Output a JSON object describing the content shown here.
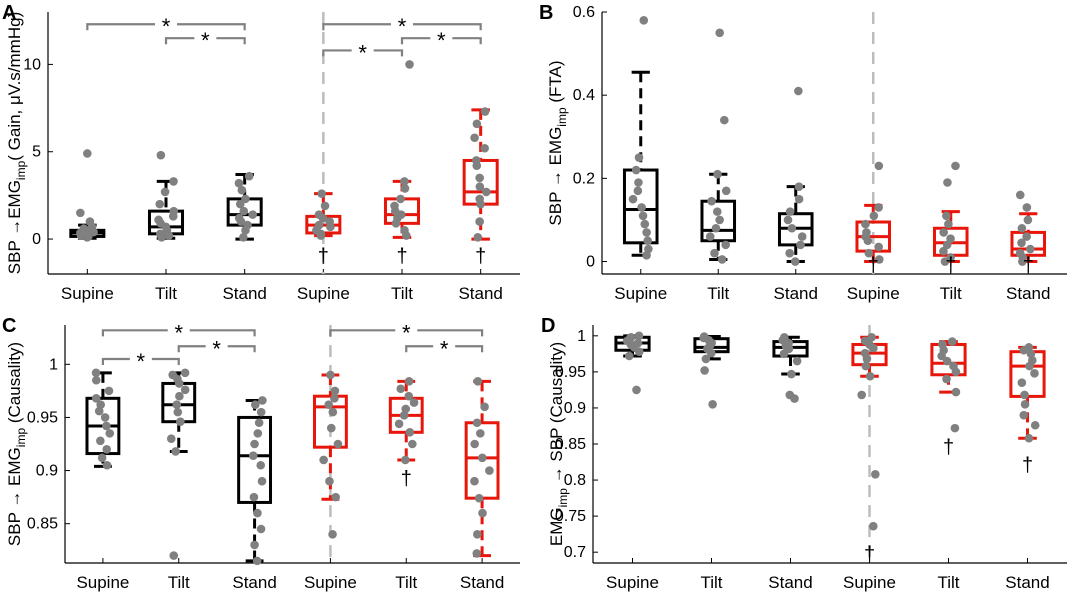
{
  "colors": {
    "black_group": "#000000",
    "red_group": "#e8150b",
    "points": "#808080",
    "bracket": "#808080",
    "divider": "#bdbdbd",
    "axis": "#000000"
  },
  "chart_data": [
    {
      "panel": "A",
      "type": "box",
      "categories": [
        "Supine",
        "Tilt",
        "Stand",
        "Supine",
        "Tilt",
        "Stand"
      ],
      "ylabel_parts": [
        "SBP →EMG",
        "imp",
        "( Gain, μV.s/mmHg)"
      ],
      "ylim": [
        -2,
        13
      ],
      "yticks": [
        0,
        5,
        10
      ],
      "ytick_labels": [
        "0",
        "5",
        "10"
      ],
      "divider_x": 3.5,
      "groups": [
        {
          "color": "black",
          "q1": 0.15,
          "median": 0.35,
          "q3": 0.5,
          "whisker_low": 0.05,
          "whisker_high": 0.8,
          "points": [
            0.1,
            0.15,
            0.2,
            0.25,
            0.3,
            0.3,
            0.35,
            0.4,
            0.45,
            0.5,
            0.6,
            0.7,
            1.0,
            1.5,
            4.9
          ]
        },
        {
          "color": "black",
          "q1": 0.3,
          "median": 0.7,
          "q3": 1.6,
          "whisker_low": 0.05,
          "whisker_high": 3.3,
          "points": [
            0.1,
            0.2,
            0.3,
            0.5,
            0.7,
            0.9,
            1.1,
            1.3,
            1.6,
            2.0,
            2.7,
            3.3,
            4.8
          ]
        },
        {
          "color": "black",
          "q1": 0.8,
          "median": 1.4,
          "q3": 2.3,
          "whisker_low": 0.0,
          "whisker_high": 3.7,
          "points": [
            0.1,
            0.5,
            0.8,
            1.0,
            1.2,
            1.4,
            1.6,
            2.0,
            2.3,
            2.8,
            3.2,
            3.6
          ]
        },
        {
          "color": "red",
          "q1": 0.35,
          "median": 0.8,
          "q3": 1.3,
          "whisker_low": 0.2,
          "whisker_high": 2.6,
          "points": [
            0.2,
            0.3,
            0.5,
            0.7,
            0.8,
            1.0,
            1.2,
            1.4,
            1.9,
            2.6
          ]
        },
        {
          "color": "red",
          "q1": 0.9,
          "median": 1.4,
          "q3": 2.3,
          "whisker_low": 0.1,
          "whisker_high": 3.3,
          "points": [
            0.2,
            0.5,
            0.9,
            1.2,
            1.4,
            1.6,
            1.9,
            2.3,
            2.9,
            3.3,
            10.0
          ]
        },
        {
          "color": "red",
          "q1": 2.0,
          "median": 2.7,
          "q3": 4.5,
          "whisker_low": 0.0,
          "whisker_high": 7.4,
          "points": [
            0.1,
            1.0,
            2.0,
            2.3,
            2.7,
            3.0,
            3.5,
            4.2,
            4.5,
            5.2,
            5.8,
            6.6,
            7.3
          ]
        }
      ],
      "significance": [
        {
          "from": 1,
          "to": 3,
          "level": 12.3,
          "label": "*"
        },
        {
          "from": 2,
          "to": 3,
          "level": 11.5,
          "label": "*"
        },
        {
          "from": 4,
          "to": 6,
          "level": 12.3,
          "label": "*"
        },
        {
          "from": 4,
          "to": 5,
          "level": 10.8,
          "label": "*"
        },
        {
          "from": 5,
          "to": 6,
          "level": 11.5,
          "label": "*"
        }
      ],
      "dagger_groups": [
        4,
        5,
        6
      ],
      "dagger_label": "†",
      "dagger_level": -1.0
    },
    {
      "panel": "B",
      "type": "box",
      "categories": [
        "Supine",
        "Tilt",
        "Stand",
        "Supine",
        "Tilt",
        "Stand"
      ],
      "ylabel_parts": [
        "SBP → EMG",
        "imp",
        " (FTA)"
      ],
      "ylim": [
        -0.03,
        0.6
      ],
      "yticks": [
        0,
        0.2,
        0.4,
        0.6
      ],
      "ytick_labels": [
        "0",
        "0.2",
        "0.4",
        "0.6"
      ],
      "divider_x": 3.5,
      "groups": [
        {
          "color": "black",
          "q1": 0.045,
          "median": 0.125,
          "q3": 0.22,
          "whisker_low": 0.015,
          "whisker_high": 0.455,
          "points": [
            0.015,
            0.03,
            0.05,
            0.07,
            0.09,
            0.11,
            0.13,
            0.15,
            0.17,
            0.19,
            0.22,
            0.25,
            0.58
          ]
        },
        {
          "color": "black",
          "q1": 0.05,
          "median": 0.075,
          "q3": 0.145,
          "whisker_low": 0.005,
          "whisker_high": 0.21,
          "points": [
            0.005,
            0.02,
            0.04,
            0.06,
            0.08,
            0.1,
            0.12,
            0.145,
            0.17,
            0.21,
            0.34,
            0.55
          ]
        },
        {
          "color": "black",
          "q1": 0.04,
          "median": 0.08,
          "q3": 0.115,
          "whisker_low": 0.0,
          "whisker_high": 0.18,
          "points": [
            0.0,
            0.02,
            0.04,
            0.06,
            0.08,
            0.1,
            0.12,
            0.15,
            0.18,
            0.41
          ]
        },
        {
          "color": "red",
          "q1": 0.025,
          "median": 0.06,
          "q3": 0.095,
          "whisker_low": 0.0,
          "whisker_high": 0.135,
          "points": [
            0.005,
            0.02,
            0.035,
            0.05,
            0.06,
            0.07,
            0.09,
            0.11,
            0.13,
            0.23
          ]
        },
        {
          "color": "red",
          "q1": 0.015,
          "median": 0.045,
          "q3": 0.08,
          "whisker_low": 0.0,
          "whisker_high": 0.12,
          "points": [
            0.0,
            0.01,
            0.025,
            0.04,
            0.055,
            0.07,
            0.09,
            0.11,
            0.19,
            0.23
          ]
        },
        {
          "color": "red",
          "q1": 0.015,
          "median": 0.03,
          "q3": 0.07,
          "whisker_low": 0.0,
          "whisker_high": 0.115,
          "points": [
            0.0,
            0.01,
            0.02,
            0.03,
            0.045,
            0.06,
            0.08,
            0.1,
            0.13,
            0.16
          ]
        }
      ],
      "significance": [],
      "dagger_groups": [
        4,
        5,
        6
      ],
      "dagger_label": "†",
      "dagger_level": -0.01
    },
    {
      "panel": "C",
      "type": "box",
      "categories": [
        "Supine",
        "Tilt",
        "Stand",
        "Supine",
        "Tilt",
        "Stand"
      ],
      "ylabel_parts": [
        "SBP → EMG",
        "imp",
        " (Causality)"
      ],
      "ylim": [
        0.813,
        1.037
      ],
      "yticks": [
        0.85,
        0.9,
        0.95,
        1.0
      ],
      "ytick_labels": [
        "0.85",
        "0.9",
        "0.95",
        "1"
      ],
      "divider_x": 3.5,
      "groups": [
        {
          "color": "black",
          "q1": 0.916,
          "median": 0.942,
          "q3": 0.968,
          "whisker_low": 0.904,
          "whisker_high": 0.992,
          "points": [
            0.905,
            0.912,
            0.92,
            0.928,
            0.935,
            0.942,
            0.95,
            0.956,
            0.962,
            0.968,
            0.975,
            0.985,
            0.992
          ]
        },
        {
          "color": "black",
          "q1": 0.946,
          "median": 0.962,
          "q3": 0.982,
          "whisker_low": 0.918,
          "whisker_high": 0.992,
          "points": [
            0.82,
            0.918,
            0.93,
            0.946,
            0.955,
            0.962,
            0.97,
            0.976,
            0.982,
            0.986,
            0.99,
            0.992
          ]
        },
        {
          "color": "black",
          "q1": 0.87,
          "median": 0.914,
          "q3": 0.95,
          "whisker_low": 0.815,
          "whisker_high": 0.966,
          "points": [
            0.815,
            0.83,
            0.845,
            0.86,
            0.875,
            0.89,
            0.905,
            0.914,
            0.925,
            0.935,
            0.945,
            0.955,
            0.962,
            0.966
          ]
        },
        {
          "color": "red",
          "q1": 0.922,
          "median": 0.96,
          "q3": 0.97,
          "whisker_low": 0.873,
          "whisker_high": 0.99,
          "points": [
            0.84,
            0.875,
            0.89,
            0.91,
            0.925,
            0.94,
            0.955,
            0.962,
            0.968,
            0.975,
            0.99
          ]
        },
        {
          "color": "red",
          "q1": 0.936,
          "median": 0.952,
          "q3": 0.968,
          "whisker_low": 0.91,
          "whisker_high": 0.984,
          "points": [
            0.91,
            0.925,
            0.936,
            0.944,
            0.952,
            0.958,
            0.964,
            0.97,
            0.977,
            0.984
          ]
        },
        {
          "color": "red",
          "q1": 0.874,
          "median": 0.912,
          "q3": 0.945,
          "whisker_low": 0.82,
          "whisker_high": 0.984,
          "points": [
            0.822,
            0.84,
            0.86,
            0.874,
            0.89,
            0.9,
            0.912,
            0.925,
            0.935,
            0.945,
            0.96,
            0.984
          ]
        }
      ],
      "significance": [
        {
          "from": 1,
          "to": 3,
          "level": 1.032,
          "label": "*"
        },
        {
          "from": 1,
          "to": 2,
          "level": 1.005,
          "label": "*"
        },
        {
          "from": 2,
          "to": 3,
          "level": 1.017,
          "label": "*"
        },
        {
          "from": 4,
          "to": 6,
          "level": 1.032,
          "label": "*"
        },
        {
          "from": 5,
          "to": 6,
          "level": 1.017,
          "label": "*"
        }
      ],
      "dagger_groups": [
        5
      ],
      "dagger_label": "†",
      "dagger_level": 0.892
    },
    {
      "panel": "D",
      "type": "box",
      "categories": [
        "Supine",
        "Tilt",
        "Stand",
        "Supine",
        "Tilt",
        "Stand"
      ],
      "ylabel_parts": [
        "EMG",
        "imp",
        " → SBP (Causality)"
      ],
      "ylim": [
        0.685,
        1.015
      ],
      "yticks": [
        0.7,
        0.75,
        0.8,
        0.85,
        0.9,
        0.95,
        1.0
      ],
      "ytick_labels": [
        "0.7",
        "0.75",
        "0.8",
        "0.85",
        "0.9",
        "0.95",
        "1"
      ],
      "divider_x": 3.5,
      "groups": [
        {
          "color": "black",
          "q1": 0.98,
          "median": 0.99,
          "q3": 0.998,
          "whisker_low": 0.972,
          "whisker_high": 1.0,
          "points": [
            0.925,
            0.972,
            0.978,
            0.984,
            0.988,
            0.99,
            0.993,
            0.996,
            0.998,
            1.0
          ]
        },
        {
          "color": "black",
          "q1": 0.978,
          "median": 0.984,
          "q3": 0.996,
          "whisker_low": 0.968,
          "whisker_high": 0.999,
          "points": [
            0.905,
            0.952,
            0.968,
            0.976,
            0.982,
            0.986,
            0.99,
            0.994,
            0.997,
            0.999
          ]
        },
        {
          "color": "black",
          "q1": 0.972,
          "median": 0.984,
          "q3": 0.992,
          "whisker_low": 0.947,
          "whisker_high": 0.998,
          "points": [
            0.913,
            0.918,
            0.947,
            0.965,
            0.975,
            0.982,
            0.986,
            0.99,
            0.994,
            0.998
          ]
        },
        {
          "color": "red",
          "q1": 0.96,
          "median": 0.976,
          "q3": 0.988,
          "whisker_low": 0.944,
          "whisker_high": 0.998,
          "points": [
            0.736,
            0.808,
            0.918,
            0.944,
            0.958,
            0.968,
            0.976,
            0.983,
            0.988,
            0.993,
            0.998
          ]
        },
        {
          "color": "red",
          "q1": 0.946,
          "median": 0.962,
          "q3": 0.988,
          "whisker_low": 0.922,
          "whisker_high": 0.992,
          "points": [
            0.872,
            0.922,
            0.94,
            0.95,
            0.958,
            0.965,
            0.972,
            0.98,
            0.988,
            0.992
          ]
        },
        {
          "color": "red",
          "q1": 0.916,
          "median": 0.958,
          "q3": 0.978,
          "whisker_low": 0.858,
          "whisker_high": 0.984,
          "points": [
            0.858,
            0.876,
            0.89,
            0.905,
            0.918,
            0.935,
            0.948,
            0.958,
            0.966,
            0.975,
            0.98,
            0.984
          ]
        }
      ],
      "significance": [],
      "dagger_groups": [
        4,
        5,
        6
      ],
      "dagger_label": "†",
      "dagger_level_by_group": [
        0.697,
        0.845,
        0.82
      ]
    }
  ]
}
